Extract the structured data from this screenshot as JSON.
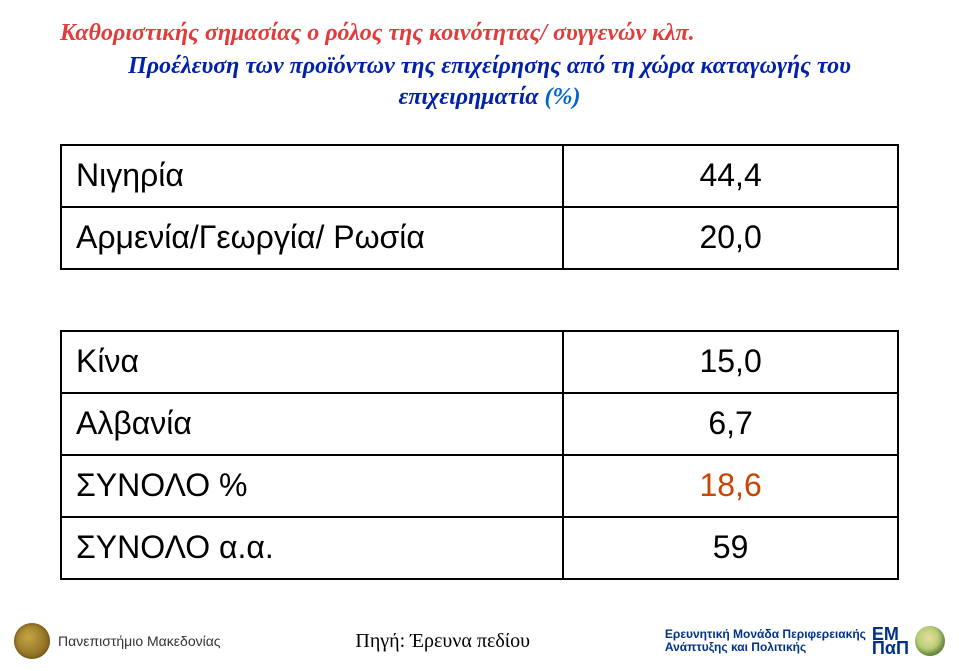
{
  "title": {
    "line1": "Καθοριστικής σημασίας ο ρόλος της κοινότητας/ συγγενών κλπ.",
    "line2_main": "Προέλευση των προϊόντων της επιχείρησης από τη χώρα καταγωγής του επιχειρηματία",
    "line2_pct": "(%)"
  },
  "table": {
    "rows": [
      {
        "label": "Νιγηρία",
        "value": "44,4"
      },
      {
        "label": "Αρμενία/Γεωργία/ Ρωσία",
        "value": "20,0"
      }
    ],
    "rows2": [
      {
        "label": "Κίνα",
        "value": "15,0"
      },
      {
        "label": "Αλβανία",
        "value": "6,7"
      },
      {
        "label": "ΣΥΝΟΛΟ %",
        "value": "18,6",
        "highlight": true
      },
      {
        "label": "ΣΥΝΟΛΟ  α.α.",
        "value": "59"
      }
    ]
  },
  "footer": {
    "university": "Πανεπιστήμιο Μακεδονίας",
    "source": "Πηγή: Έρευνα πεδίου",
    "unit_line1": "Ερευνητική Μονάδα Περιφερειακής",
    "unit_line2": "Ανάπτυξης και Πολιτικής",
    "logo_top": "ΕΜ",
    "logo_bot": "ΠαΠ"
  }
}
